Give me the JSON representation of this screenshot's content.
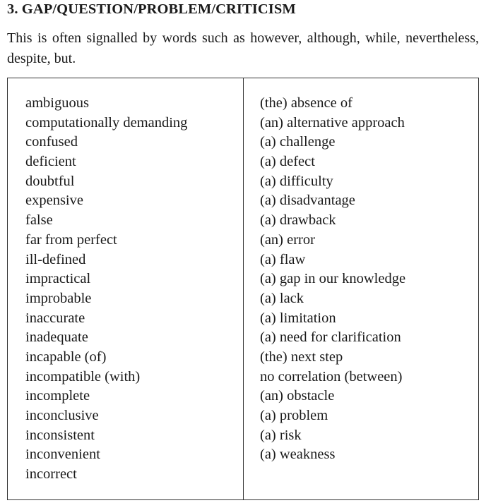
{
  "section": {
    "heading": "3.  GAP/QUESTION/PROBLEM/CRITICISM",
    "intro": "This is often signalled by words such as however, although, while, nevertheless, despite, but."
  },
  "table": {
    "left": [
      "ambiguous",
      "computationally demanding",
      "confused",
      "deficient",
      "doubtful",
      "expensive",
      "false",
      "far from perfect",
      "ill-defined",
      "impractical",
      "improbable",
      "inaccurate",
      "inadequate",
      "incapable (of)",
      "incompatible (with)",
      "incomplete",
      "inconclusive",
      "inconsistent",
      "inconvenient",
      "incorrect"
    ],
    "right": [
      "(the) absence of",
      "(an) alternative approach",
      "(a) challenge",
      "(a) defect",
      "(a) difficulty",
      "(a) disadvantage",
      "(a) drawback",
      "(an) error",
      "(a) flaw",
      "(a) gap in our knowledge",
      "(a) lack",
      "(a) limitation",
      "(a) need for clarification",
      "(the) next step",
      "no correlation (between)",
      "(an) obstacle",
      "(a) problem",
      "(a) risk",
      "(a) weakness"
    ]
  }
}
